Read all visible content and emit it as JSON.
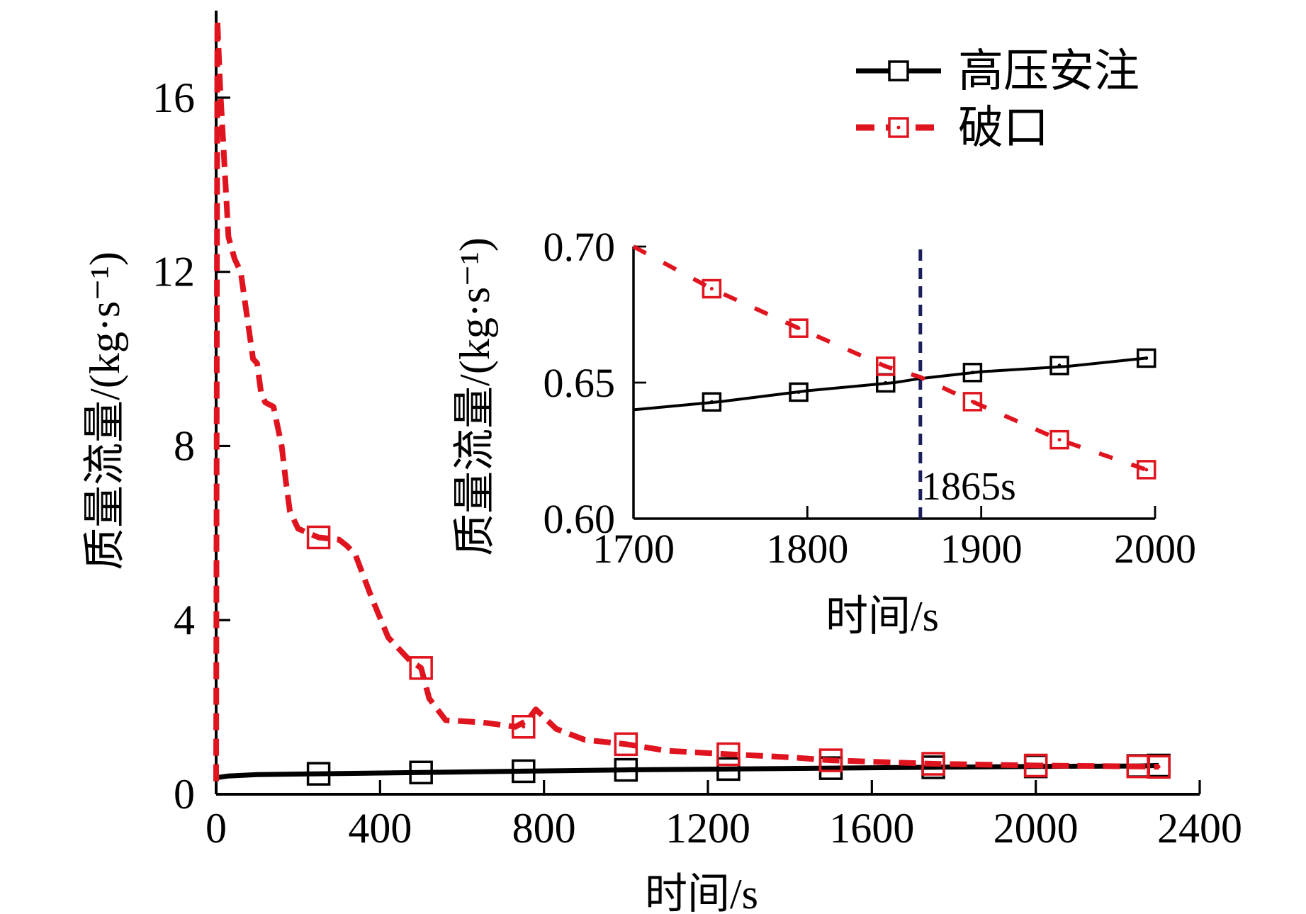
{
  "colors": {
    "injection": "#000000",
    "break": "#e0141e",
    "marker_line": "#1a1f5c",
    "axis": "#000000"
  },
  "chart_data": [
    {
      "type": "line",
      "title": "",
      "xlabel": "时间/s",
      "ylabel": "质量流量/(kg·s⁻¹)",
      "xlim": [
        0,
        2400
      ],
      "ylim": [
        0,
        18
      ],
      "xticks": [
        0,
        400,
        800,
        1200,
        1600,
        2000,
        2400
      ],
      "xtick_labels": [
        "0",
        "400",
        "800",
        "1200",
        "1600",
        "2000",
        "2400"
      ],
      "yticks": [
        0,
        4,
        8,
        12,
        16
      ],
      "ytick_labels": [
        "0",
        "4",
        "8",
        "12",
        "16"
      ],
      "legend_position": "top-right",
      "series": [
        {
          "name": "高压安注",
          "style": "solid",
          "marker": "open-square",
          "x": [
            0,
            30,
            100,
            250,
            500,
            750,
            1000,
            1250,
            1500,
            1750,
            2000,
            2250,
            2300
          ],
          "y": [
            0.38,
            0.42,
            0.45,
            0.47,
            0.5,
            0.53,
            0.56,
            0.58,
            0.6,
            0.62,
            0.64,
            0.65,
            0.66
          ],
          "marker_x": [
            250,
            500,
            750,
            1000,
            1250,
            1500,
            1750,
            2000,
            2250,
            2300
          ],
          "marker_y": [
            0.47,
            0.5,
            0.53,
            0.56,
            0.58,
            0.6,
            0.62,
            0.64,
            0.65,
            0.66
          ]
        },
        {
          "name": "破口",
          "style": "dashed",
          "marker": "open-square-dot",
          "x": [
            0,
            3,
            10,
            20,
            30,
            45,
            60,
            75,
            90,
            100,
            110,
            120,
            140,
            160,
            170,
            180,
            200,
            250,
            300,
            320,
            340,
            360,
            380,
            420,
            470,
            500,
            520,
            560,
            650,
            730,
            760,
            780,
            830,
            900,
            1000,
            1100,
            1250,
            1400,
            1500,
            1750,
            2000,
            2250,
            2300
          ],
          "y": [
            0.3,
            17.8,
            16.2,
            14.5,
            12.8,
            12.3,
            12.0,
            11.0,
            10.0,
            9.9,
            9.2,
            9.0,
            8.9,
            8.0,
            7.2,
            6.5,
            6.1,
            5.9,
            5.85,
            5.7,
            5.5,
            5.0,
            4.5,
            3.6,
            3.1,
            2.9,
            2.2,
            1.7,
            1.65,
            1.55,
            1.7,
            1.95,
            1.5,
            1.25,
            1.15,
            1.0,
            0.92,
            0.85,
            0.78,
            0.7,
            0.66,
            0.64,
            0.63
          ],
          "marker_x": [
            250,
            500,
            750,
            1000,
            1250,
            1500,
            1750,
            2000,
            2250,
            2300
          ],
          "marker_y": [
            5.9,
            2.9,
            1.55,
            1.15,
            0.92,
            0.78,
            0.7,
            0.66,
            0.64,
            0.63
          ]
        }
      ]
    },
    {
      "type": "line",
      "title": "",
      "placement": "inset",
      "xlabel": "时间/s",
      "ylabel": "质量流量/(kg·s⁻¹)",
      "xlim": [
        1700,
        2000
      ],
      "ylim": [
        0.6,
        0.7
      ],
      "xticks": [
        1700,
        1800,
        1900,
        2000
      ],
      "xtick_labels": [
        "1700",
        "1800",
        "1900",
        "2000"
      ],
      "yticks": [
        0.6,
        0.65,
        0.7
      ],
      "ytick_labels": [
        "0.60",
        "0.65",
        "0.70"
      ],
      "vertical_marker": {
        "x": 1865,
        "label": "1865s"
      },
      "series": [
        {
          "name": "高压安注",
          "style": "solid",
          "marker": "open-square-dot",
          "x": [
            1700,
            1750,
            1800,
            1850,
            1865,
            1900,
            1950,
            1995
          ],
          "y": [
            0.64,
            0.643,
            0.647,
            0.65,
            0.6515,
            0.654,
            0.656,
            0.659
          ],
          "marker_x": [
            1745,
            1795,
            1845,
            1895,
            1945,
            1995
          ],
          "marker_y": [
            0.6429,
            0.6465,
            0.6499,
            0.6537,
            0.6563,
            0.659
          ]
        },
        {
          "name": "破口",
          "style": "dashed",
          "marker": "open-square-dot",
          "x": [
            1700,
            1745,
            1795,
            1845,
            1865,
            1895,
            1945,
            1995
          ],
          "y": [
            0.7,
            0.6845,
            0.67,
            0.656,
            0.652,
            0.643,
            0.629,
            0.618
          ],
          "marker_x": [
            1745,
            1795,
            1845,
            1895,
            1945,
            1995
          ],
          "marker_y": [
            0.6845,
            0.67,
            0.656,
            0.643,
            0.629,
            0.618
          ]
        }
      ]
    }
  ]
}
